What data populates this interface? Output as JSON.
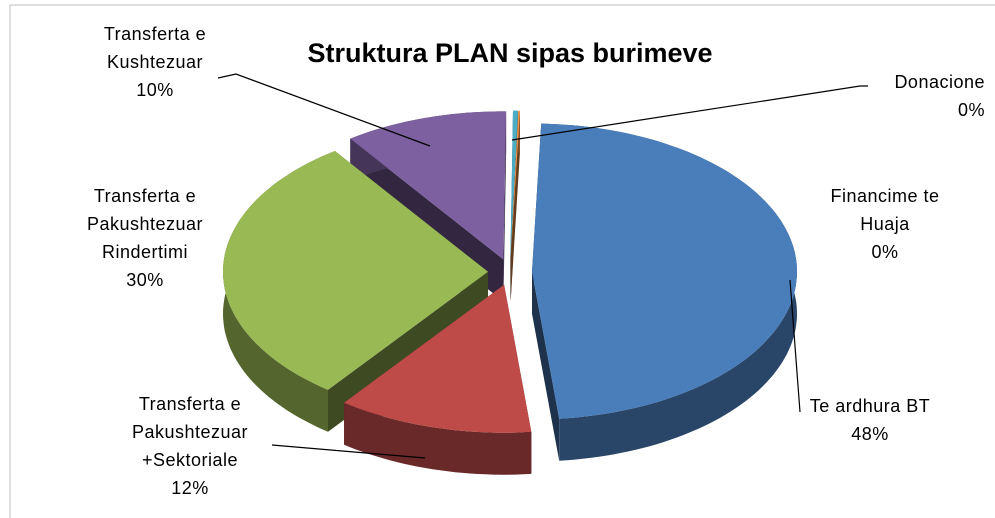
{
  "chart_data": {
    "type": "pie",
    "title": "Struktura PLAN sipas burimeve",
    "categories": [
      "Te ardhura BT",
      "Transferta e\nPakushtezuar\n+Sektoriale",
      "Transferta e\nPakushtezuar\nRindertimi",
      "Transferta e\nKushtezuar",
      "Donacione",
      "Financime te\nHuaja"
    ],
    "values": [
      48,
      12,
      30,
      10,
      0.3,
      0.1
    ],
    "value_labels": [
      "48%",
      "12%",
      "30%",
      "10%",
      "0%",
      "0%"
    ],
    "colors": [
      "#4a7ebb",
      "#be4b48",
      "#98b954",
      "#7d60a0",
      "#4bacc6",
      "#f79646"
    ],
    "three_d": true,
    "exploded": true
  }
}
